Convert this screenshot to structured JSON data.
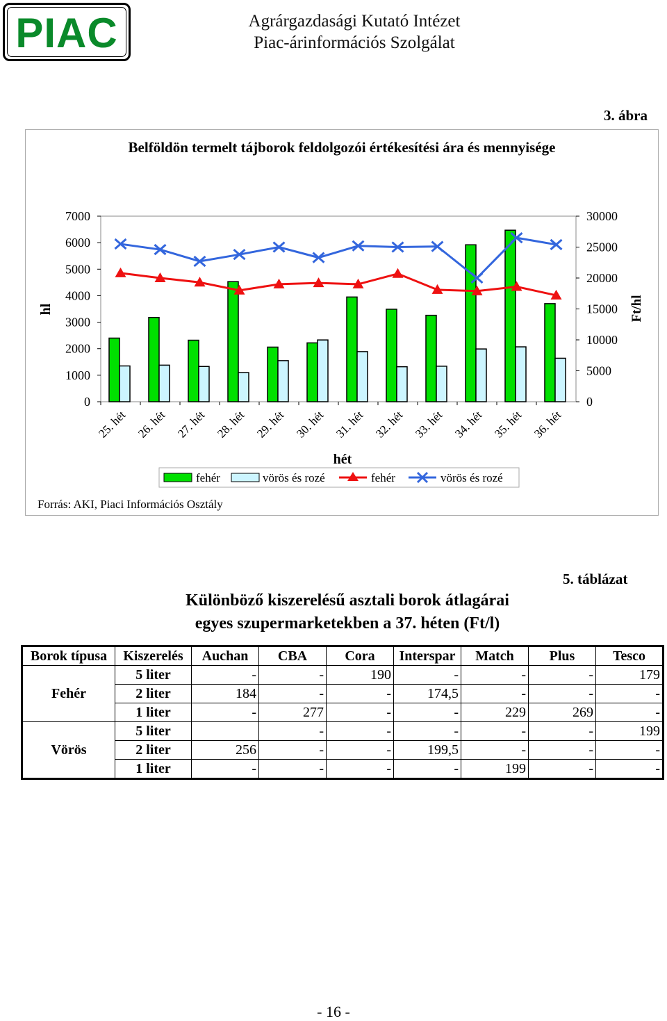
{
  "header": {
    "logo_text": "PIAC",
    "institute_line1": "Agrárgazdasági Kutató Intézet",
    "institute_line2": "Piac-árinformációs Szolgálat"
  },
  "figure": {
    "number": "3. ábra",
    "source": "Forrás: AKI, Piaci Információs Osztály"
  },
  "chart_data": {
    "type": "bar",
    "title": "Belföldön termelt tájborok feldolgozói értékesítési ára és mennyisége",
    "xlabel": "hét",
    "ylabel": "hl",
    "y2label": "Ft/hl",
    "ylim": [
      0,
      7000
    ],
    "y2lim": [
      0,
      30000
    ],
    "yticks": [
      "0",
      "1000",
      "2000",
      "3000",
      "4000",
      "5000",
      "6000",
      "7000"
    ],
    "y2ticks": [
      "0",
      "5000",
      "10000",
      "15000",
      "20000",
      "25000",
      "30000"
    ],
    "categories": [
      "25. hét",
      "26. hét",
      "27. hét",
      "28. hét",
      "29. hét",
      "30. hét",
      "31. hét",
      "32. hét",
      "33. hét",
      "34. hét",
      "35. hét",
      "36. hét"
    ],
    "series": [
      {
        "name": "fehér",
        "kind": "bar",
        "axis": "left",
        "color": "#00e000",
        "values": [
          2400,
          3180,
          2320,
          4530,
          2060,
          2220,
          3950,
          3490,
          3260,
          5920,
          6470,
          3700
        ]
      },
      {
        "name": "vörös és rozé",
        "kind": "bar",
        "axis": "left",
        "color": "#ccf5ff",
        "values": [
          1350,
          1380,
          1330,
          1100,
          1550,
          2330,
          1890,
          1320,
          1340,
          1990,
          2070,
          1640
        ]
      },
      {
        "name": "fehér",
        "kind": "line",
        "axis": "right",
        "color": "#ee1111",
        "marker": "triangle",
        "values": [
          20800,
          20000,
          19300,
          18000,
          19000,
          19200,
          19000,
          20700,
          18100,
          17900,
          18600,
          17200
        ]
      },
      {
        "name": "vörös és rozé",
        "kind": "line",
        "axis": "right",
        "color": "#3366dd",
        "marker": "x",
        "values": [
          25500,
          24600,
          22700,
          23800,
          25000,
          23300,
          25200,
          25000,
          25100,
          20000,
          26500,
          25400
        ]
      }
    ],
    "legend": "bottom"
  },
  "table": {
    "number": "5. táblázat",
    "title_line1": "Különböző kiszerelésű asztali borok átlagárai",
    "title_line2": "egyes szupermarketekben a 37. héten (Ft/l)",
    "headers": [
      "Borok típusa",
      "Kiszerelés",
      "Auchan",
      "CBA",
      "Cora",
      "Interspar",
      "Match",
      "Plus",
      "Tesco"
    ],
    "groups": [
      {
        "type": "Fehér",
        "rows": [
          {
            "pack": "5 liter",
            "values": [
              "-",
              "-",
              "190",
              "-",
              "-",
              "-",
              "179"
            ]
          },
          {
            "pack": "2 liter",
            "values": [
              "184",
              "-",
              "-",
              "174,5",
              "-",
              "-",
              "-"
            ]
          },
          {
            "pack": "1 liter",
            "values": [
              "-",
              "277",
              "-",
              "-",
              "229",
              "269",
              "-"
            ]
          }
        ]
      },
      {
        "type": "Vörös",
        "rows": [
          {
            "pack": "5 liter",
            "values": [
              "",
              "-",
              "-",
              "-",
              "-",
              "-",
              "199"
            ]
          },
          {
            "pack": "2 liter",
            "values": [
              "256",
              "-",
              "-",
              "199,5",
              "-",
              "-",
              "-"
            ]
          },
          {
            "pack": "1 liter",
            "values": [
              "-",
              "-",
              "-",
              "-",
              "199",
              "-",
              "-"
            ]
          }
        ]
      }
    ]
  },
  "footer": {
    "page_number": "- 16 -"
  }
}
